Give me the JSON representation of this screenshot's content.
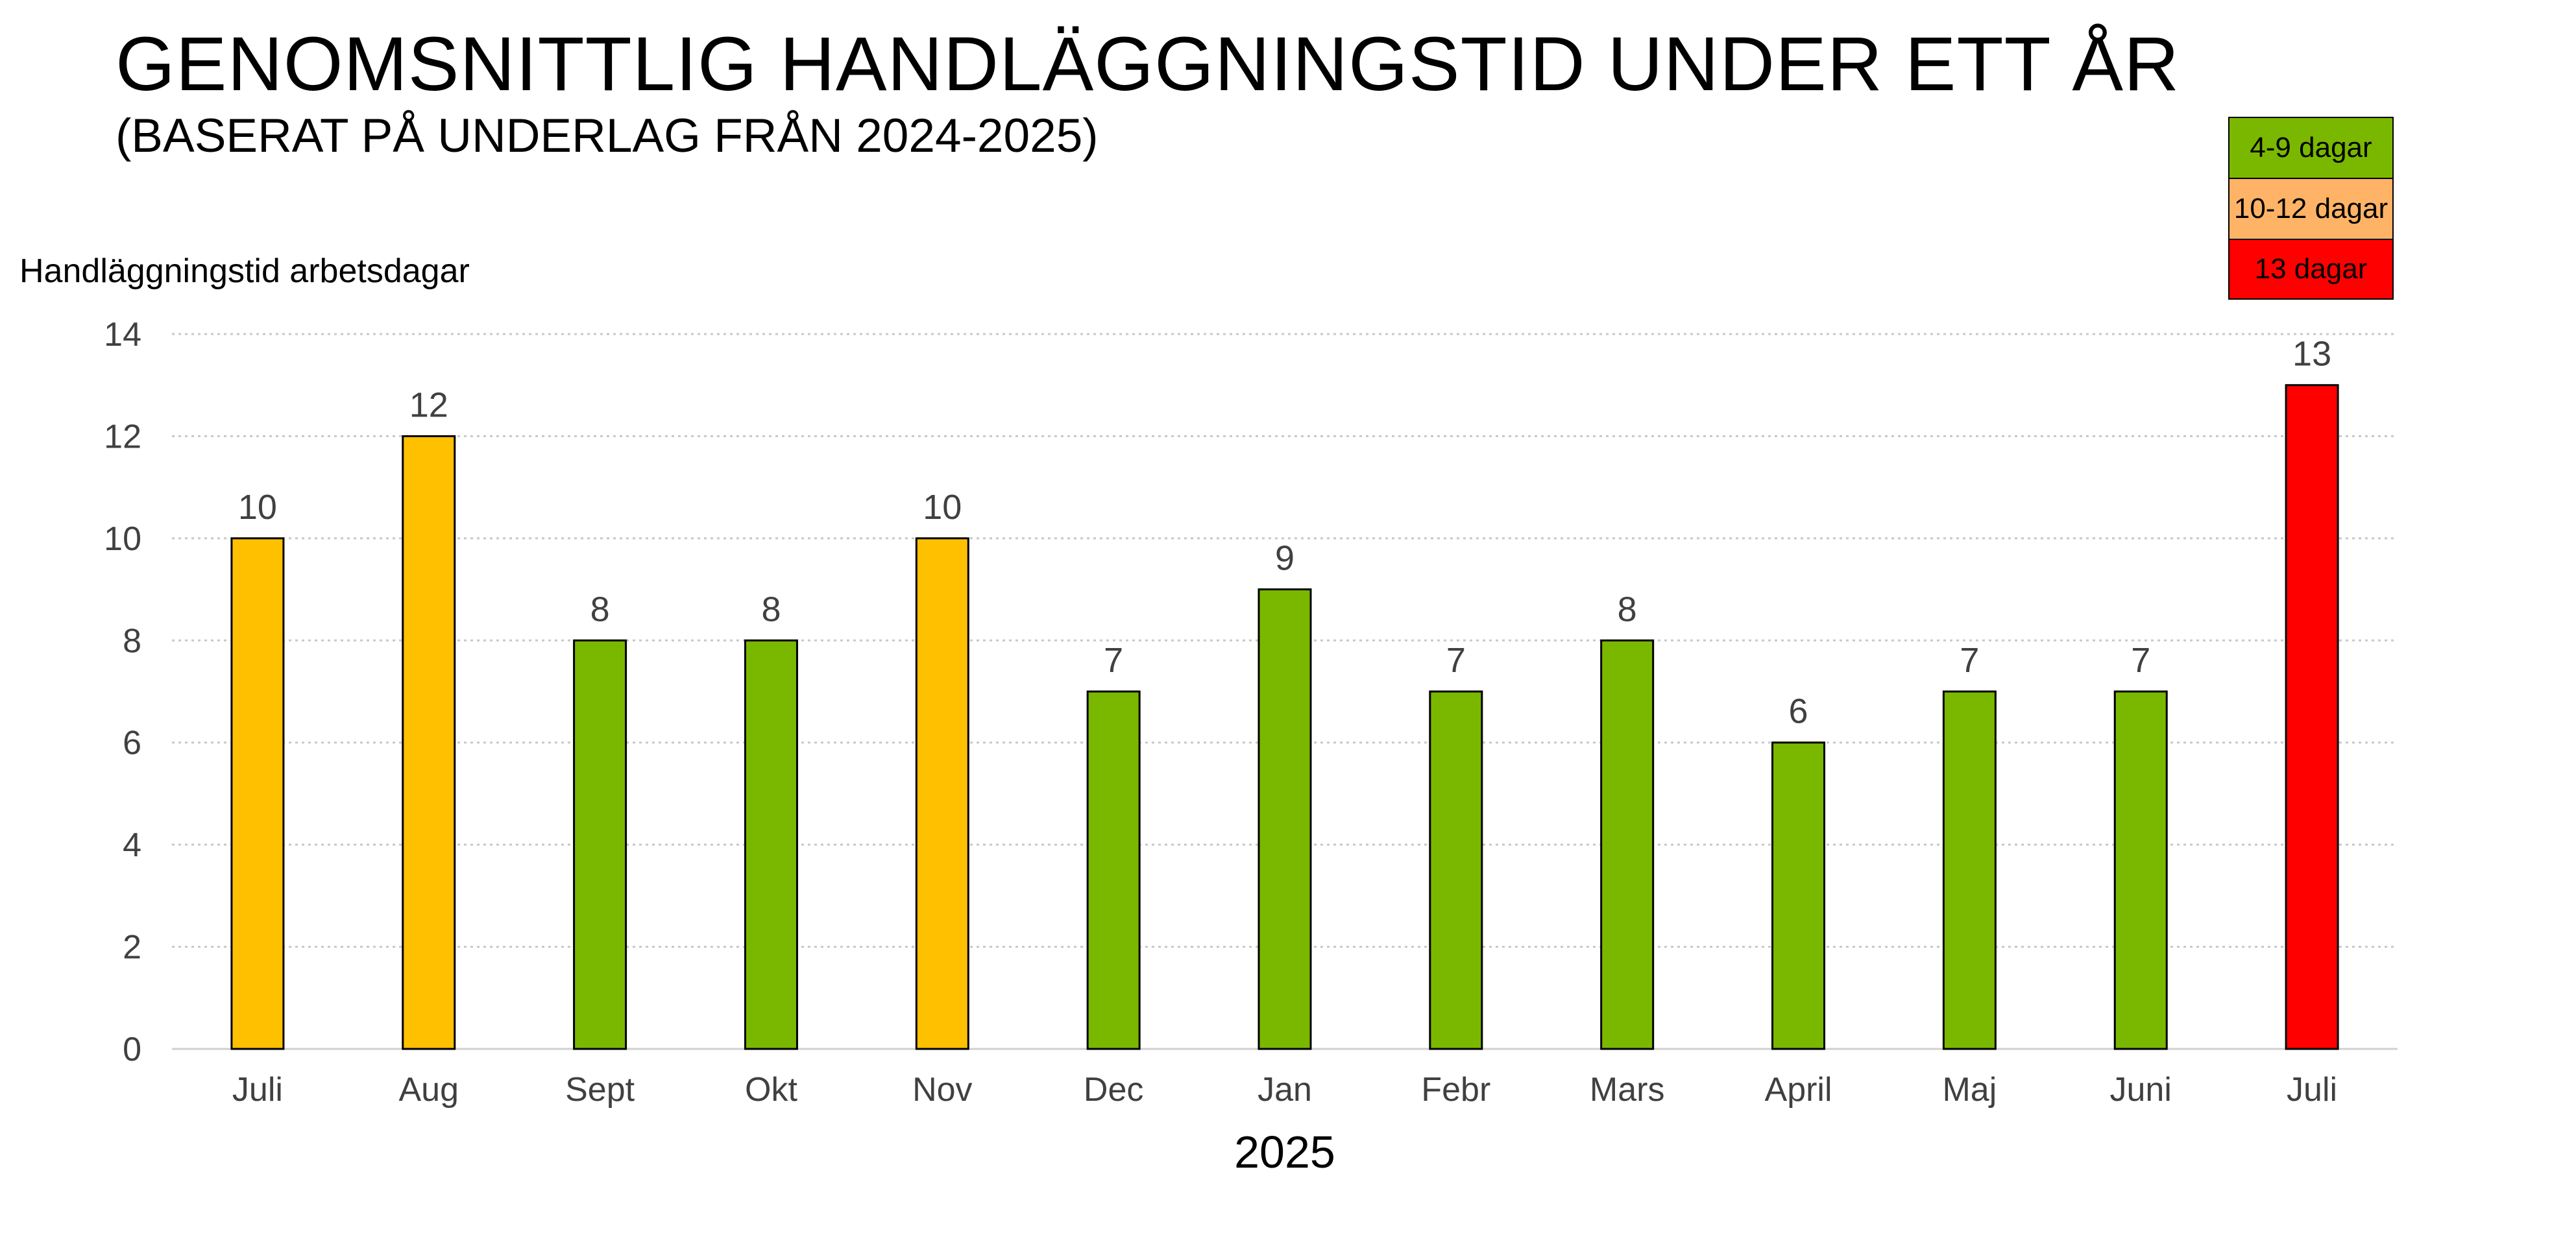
{
  "colors": {
    "green": "#7ab800",
    "orange": "#ffc000",
    "red": "#ff0000",
    "legend_orange": "#ffb366"
  },
  "chart_data": {
    "type": "bar",
    "title": "GENOMSNITTLIG HANDLÄGGNINGSTID UNDER ETT ÅR",
    "subtitle": "(BASERAT PÅ UNDERLAG FRÅN 2024-2025)",
    "ylabel": "Handläggningstid arbetsdagar",
    "xlabel": "2025",
    "categories": [
      "Juli",
      "Aug",
      "Sept",
      "Okt",
      "Nov",
      "Dec",
      "Jan",
      "Febr",
      "Mars",
      "April",
      "Maj",
      "Juni",
      "Juli"
    ],
    "values": [
      10,
      12,
      8,
      8,
      10,
      7,
      9,
      7,
      8,
      6,
      7,
      7,
      13
    ],
    "bar_colors": [
      "orange",
      "orange",
      "green",
      "green",
      "orange",
      "green",
      "green",
      "green",
      "green",
      "green",
      "green",
      "green",
      "red"
    ],
    "ylim": [
      0,
      14
    ],
    "yticks": [
      0,
      2,
      4,
      6,
      8,
      10,
      12,
      14
    ],
    "grid": true,
    "legend": [
      {
        "label": "4-9 dagar",
        "color": "#7ab800"
      },
      {
        "label": "10-12 dagar",
        "color": "#ffb366"
      },
      {
        "label": "13 dagar",
        "color": "#ff0000"
      }
    ]
  }
}
